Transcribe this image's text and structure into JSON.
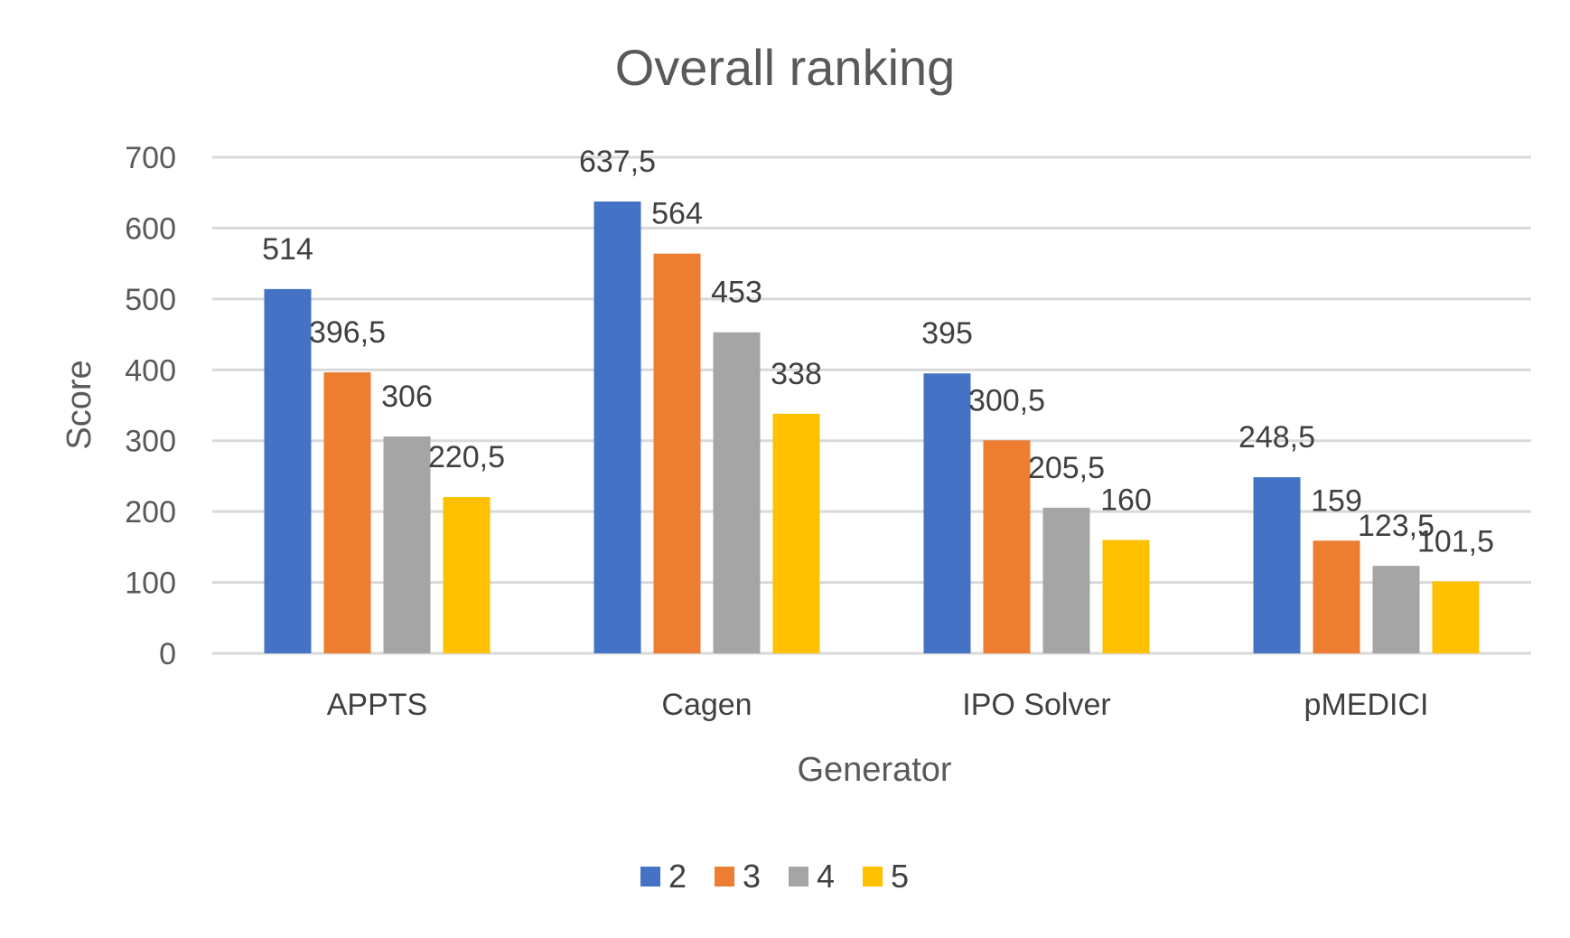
{
  "chart_data": {
    "type": "bar",
    "title": "Overall ranking",
    "xlabel": "Generator",
    "ylabel": "Score",
    "ylim": [
      0,
      700
    ],
    "yticks": [
      0,
      100,
      200,
      300,
      400,
      500,
      600,
      700
    ],
    "grid": true,
    "legend_position": "bottom",
    "categories": [
      "APPTS",
      "Cagen",
      "IPO Solver",
      "pMEDICI"
    ],
    "series": [
      {
        "name": "2",
        "color": "#4472c4",
        "values": [
          514,
          637.5,
          395,
          248.5
        ],
        "labels": [
          "514",
          "637,5",
          "395",
          "248,5"
        ]
      },
      {
        "name": "3",
        "color": "#ed7d31",
        "values": [
          396.5,
          564,
          300.5,
          159
        ],
        "labels": [
          "396,5",
          "564",
          "300,5",
          "159"
        ]
      },
      {
        "name": "4",
        "color": "#a5a5a5",
        "values": [
          306,
          453,
          205.5,
          123.5
        ],
        "labels": [
          "306",
          "453",
          "205,5",
          "123,5"
        ]
      },
      {
        "name": "5",
        "color": "#ffc000",
        "values": [
          220.5,
          338,
          160,
          101.5
        ],
        "labels": [
          "220,5",
          "338",
          "160",
          "101,5"
        ]
      }
    ]
  }
}
